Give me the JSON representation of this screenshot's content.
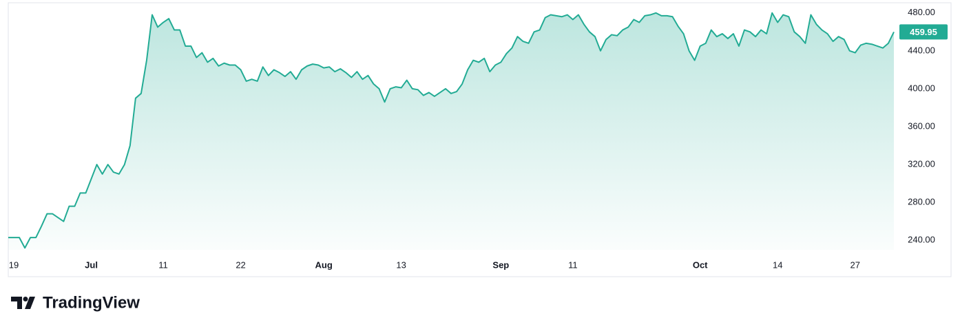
{
  "brand": "TradingView",
  "chart_data": {
    "type": "area",
    "color": "#22ab94",
    "categories": [
      null,
      "19",
      null,
      null,
      null,
      null,
      null,
      null,
      null,
      null,
      null,
      null,
      null,
      null,
      null,
      "Jul",
      null,
      null,
      null,
      null,
      null,
      null,
      null,
      null,
      null,
      null,
      null,
      null,
      "11",
      null,
      null,
      null,
      null,
      null,
      null,
      null,
      null,
      null,
      null,
      null,
      null,
      null,
      "22",
      null,
      null,
      null,
      null,
      null,
      null,
      null,
      null,
      null,
      null,
      null,
      null,
      null,
      null,
      "Aug",
      null,
      null,
      null,
      null,
      null,
      null,
      null,
      null,
      null,
      null,
      null,
      null,
      null,
      "13",
      null,
      null,
      null,
      null,
      null,
      null,
      null,
      null,
      null,
      null,
      null,
      null,
      null,
      null,
      null,
      null,
      null,
      "Sep",
      null,
      null,
      null,
      null,
      null,
      null,
      null,
      null,
      null,
      null,
      null,
      null,
      "11",
      null,
      null,
      null,
      null,
      null,
      null,
      null,
      null,
      null,
      null,
      null,
      null,
      null,
      null,
      null,
      null,
      null,
      null,
      null,
      null,
      null,
      null,
      "Oct",
      null,
      null,
      null,
      null,
      null,
      null,
      null,
      null,
      null,
      null,
      null,
      null,
      null,
      "14",
      null,
      null,
      null,
      null,
      null,
      null,
      null,
      null,
      null,
      null,
      null,
      null,
      null,
      "27",
      null,
      null,
      null,
      null,
      null,
      null,
      null
    ],
    "values": [
      243,
      243,
      243,
      232,
      243,
      243,
      255,
      268,
      268,
      264,
      260,
      276,
      276,
      290,
      290,
      305,
      320,
      310,
      320,
      312,
      310,
      320,
      340,
      390,
      395,
      430,
      478,
      465,
      470,
      474,
      462,
      462,
      445,
      445,
      433,
      438,
      428,
      432,
      424,
      427,
      425,
      425,
      420,
      408,
      410,
      408,
      423,
      414,
      420,
      417,
      413,
      418,
      410,
      420,
      424,
      426,
      425,
      422,
      423,
      418,
      421,
      417,
      412,
      418,
      410,
      414,
      405,
      400,
      386,
      400,
      402,
      401,
      409,
      400,
      399,
      393,
      396,
      392,
      396,
      400,
      395,
      397,
      405,
      420,
      430,
      428,
      432,
      418,
      425,
      428,
      437,
      443,
      455,
      450,
      448,
      460,
      462,
      475,
      478,
      477,
      476,
      478,
      473,
      478,
      468,
      460,
      455,
      440,
      452,
      457,
      456,
      462,
      465,
      473,
      470,
      477,
      478,
      480,
      477,
      477,
      476,
      466,
      458,
      440,
      430,
      445,
      448,
      462,
      455,
      458,
      453,
      458,
      445,
      462,
      460,
      455,
      462,
      458,
      480,
      470,
      478,
      476,
      460,
      455,
      448,
      478,
      468,
      462,
      458,
      450,
      455,
      452,
      440,
      438,
      446,
      448,
      447,
      445,
      443,
      448,
      459.95
    ],
    "ylim": [
      230,
      490
    ],
    "yticks": [
      {
        "value": 240,
        "label": "240.00"
      },
      {
        "value": 280,
        "label": "280.00"
      },
      {
        "value": 320,
        "label": "320.00"
      },
      {
        "value": 360,
        "label": "360.00"
      },
      {
        "value": 400,
        "label": "400.00"
      },
      {
        "value": 440,
        "label": "440.00"
      },
      {
        "value": 480,
        "label": "480.00"
      }
    ]
  }
}
